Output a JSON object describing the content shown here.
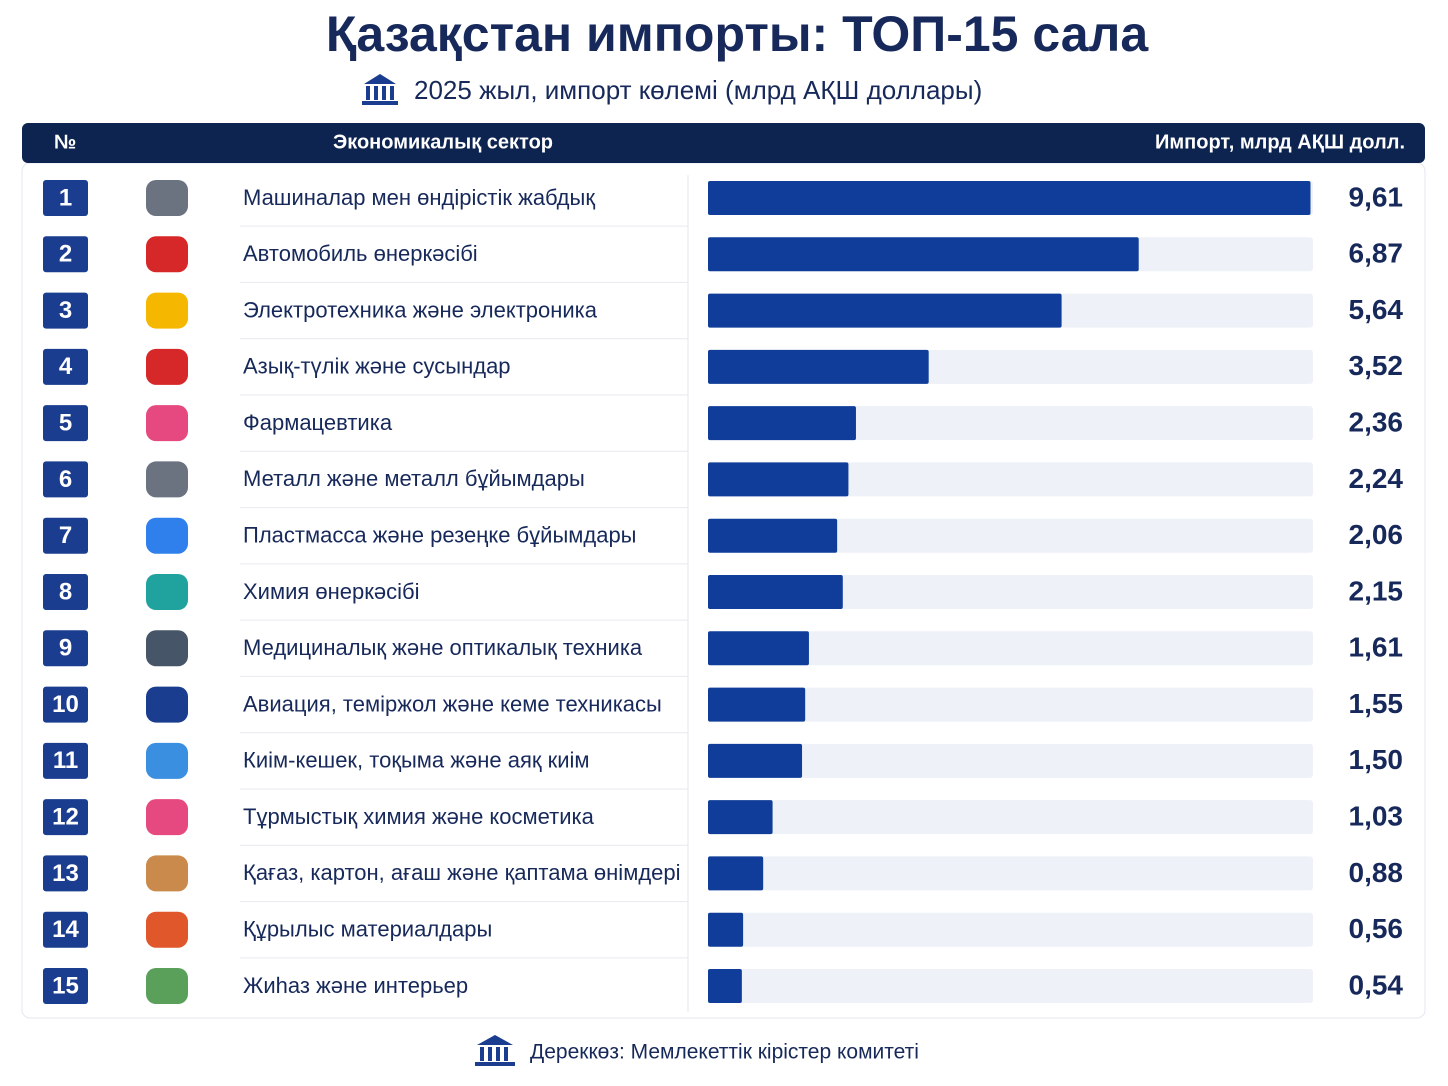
{
  "chart_data": {
    "type": "bar",
    "orientation": "horizontal",
    "title": "Қазақстан импорты: ТОП-15 сала",
    "subtitle": "2025 жыл, импорт көлемі (млрд АҚШ доллары)",
    "columns": [
      "№",
      "Экономикалық сектор",
      "Импорт, млрд АҚШ долл."
    ],
    "ranks": [
      1,
      2,
      3,
      4,
      5,
      6,
      7,
      8,
      9,
      10,
      11,
      12,
      13,
      14,
      15
    ],
    "categories": [
      "Машиналар мен өндірістік жабдық",
      "Автомобиль өнеркәсібі",
      "Электротехника және электроника",
      "Азық-түлік және сусындар",
      "Фармацевтика",
      "Металл және металл бұйымдары",
      "Пластмасса және резеңке бұйымдары",
      "Химия өнеркәсібі",
      "Медициналық және оптикалық техника",
      "Авиация, теміржол және кеме техникасы",
      "Киім-кешек, тоқыма және аяқ киім",
      "Тұрмыстық химия және косметика",
      "Қағаз, картон, ағаш және қаптама өнімдері",
      "Құрылыс материалдары",
      "Жиһаз және интерьер"
    ],
    "values": [
      9.61,
      6.87,
      5.64,
      3.52,
      2.36,
      2.24,
      2.06,
      2.15,
      1.61,
      1.55,
      1.5,
      1.03,
      0.88,
      0.56,
      0.54
    ],
    "value_labels": [
      "9,61",
      "6,87",
      "5,64",
      "3,52",
      "2,36",
      "2,24",
      "2,06",
      "2,15",
      "1,61",
      "1,55",
      "1,50",
      "1,03",
      "0,88",
      "0,56",
      "0,54"
    ],
    "color": "#0f3d99",
    "track_color": "#eef1f7",
    "xlim": [
      0,
      9.65
    ],
    "source": "Дереккөз: Мемлекеттік кірістер комитеті"
  }
}
